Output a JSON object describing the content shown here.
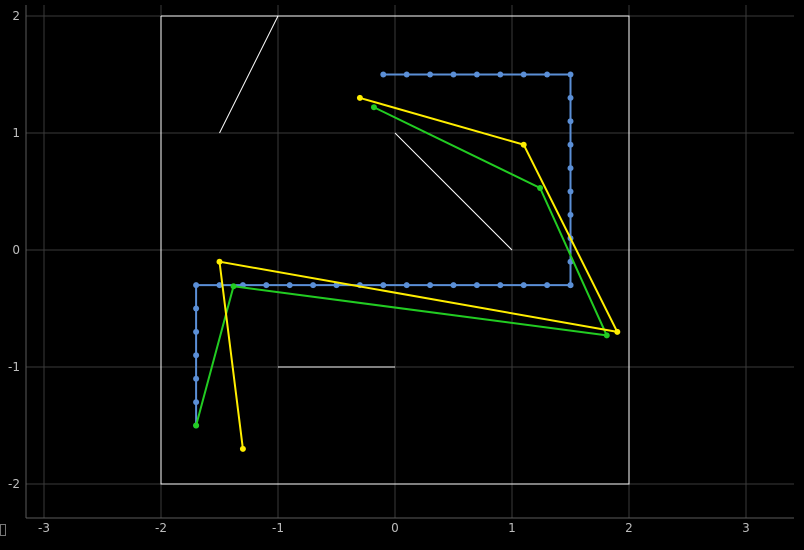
{
  "chart_data": {
    "type": "line",
    "title": "",
    "xlabel": "",
    "ylabel": "",
    "xlim": [
      -3.4,
      3.4
    ],
    "ylim": [
      -2.3,
      2.1
    ],
    "x_ticks": [
      -3,
      -2,
      -1,
      0,
      1,
      2,
      3
    ],
    "y_ticks": [
      -2,
      -1,
      0,
      1,
      2
    ],
    "x_tick_labels": [
      "-3",
      "-2",
      "-1",
      "0",
      "1",
      "2",
      "3"
    ],
    "y_tick_labels": [
      "-2",
      "-1",
      "0",
      "1",
      "2"
    ],
    "grid": true,
    "colors": {
      "background": "#000000",
      "grid": "#3a3a3a",
      "axis": "#5a5a5a",
      "shapes": "#ffffff",
      "blue": "#5b8fd6",
      "green": "#22cc22",
      "yellow": "#ffee00"
    },
    "white_shapes": [
      {
        "kind": "rectangle",
        "points": [
          [
            -2,
            2
          ],
          [
            2,
            2
          ],
          [
            2,
            -2
          ],
          [
            -2,
            -2
          ],
          [
            -2,
            2
          ]
        ]
      },
      {
        "kind": "segment",
        "points": [
          [
            -1.5,
            1
          ],
          [
            -1,
            2
          ]
        ]
      },
      {
        "kind": "segment",
        "points": [
          [
            0,
            1
          ],
          [
            1,
            0
          ]
        ]
      },
      {
        "kind": "segment",
        "points": [
          [
            -1,
            -1
          ],
          [
            0,
            -1
          ]
        ]
      }
    ],
    "series": [
      {
        "color": "blue",
        "x": [
          -0.1,
          0.1,
          0.3,
          0.5,
          0.7,
          0.9,
          1.1,
          1.3,
          1.5,
          1.5,
          1.5,
          1.5,
          1.5,
          1.5,
          1.5,
          1.5,
          1.5,
          1.5,
          1.5,
          1.3,
          1.1,
          0.9,
          0.7,
          0.5,
          0.3,
          0.1,
          -0.1,
          -0.3,
          -0.5,
          -0.7,
          -0.9,
          -1.1,
          -1.3,
          -1.5,
          -1.7,
          -1.7,
          -1.7,
          -1.7,
          -1.7,
          -1.7,
          -1.7
        ],
        "y": [
          1.5,
          1.5,
          1.5,
          1.5,
          1.5,
          1.5,
          1.5,
          1.5,
          1.5,
          1.3,
          1.1,
          0.9,
          0.7,
          0.5,
          0.3,
          0.1,
          -0.1,
          -0.3,
          -0.3,
          -0.3,
          -0.3,
          -0.3,
          -0.3,
          -0.3,
          -0.3,
          -0.3,
          -0.3,
          -0.3,
          -0.3,
          -0.3,
          -0.3,
          -0.3,
          -0.3,
          -0.3,
          -0.3,
          -0.5,
          -0.7,
          -0.9,
          -1.1,
          -1.3,
          -1.5
        ]
      },
      {
        "color": "green",
        "x": [
          -0.18,
          1.24,
          1.81,
          -1.38,
          -1.7
        ],
        "y": [
          1.22,
          0.53,
          -0.73,
          -0.31,
          -1.5
        ]
      },
      {
        "color": "yellow",
        "x": [
          -0.3,
          1.1,
          1.9,
          -1.5,
          -1.3
        ],
        "y": [
          1.3,
          0.9,
          -0.7,
          -0.1,
          -1.7
        ]
      }
    ]
  }
}
